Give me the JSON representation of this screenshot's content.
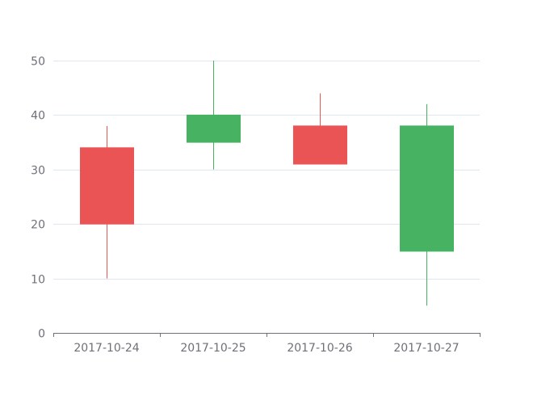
{
  "chart_data": {
    "type": "candlestick",
    "categories": [
      "2017-10-24",
      "2017-10-25",
      "2017-10-26",
      "2017-10-27"
    ],
    "series": [
      {
        "values": [
          {
            "open": 20,
            "close": 34,
            "low": 10,
            "high": 38
          },
          {
            "open": 40,
            "close": 35,
            "low": 30,
            "high": 50
          },
          {
            "open": 31,
            "close": 38,
            "low": 33,
            "high": 44
          },
          {
            "open": 38,
            "close": 15,
            "low": 5,
            "high": 42
          }
        ]
      }
    ],
    "ylim": [
      0,
      50
    ],
    "yticks": [
      0,
      10,
      20,
      30,
      40,
      50
    ],
    "grid": true,
    "colors": {
      "up": "#eb5454",
      "down": "#47b262",
      "grid": "#e0e6f1",
      "axis": "#6e7079"
    }
  }
}
